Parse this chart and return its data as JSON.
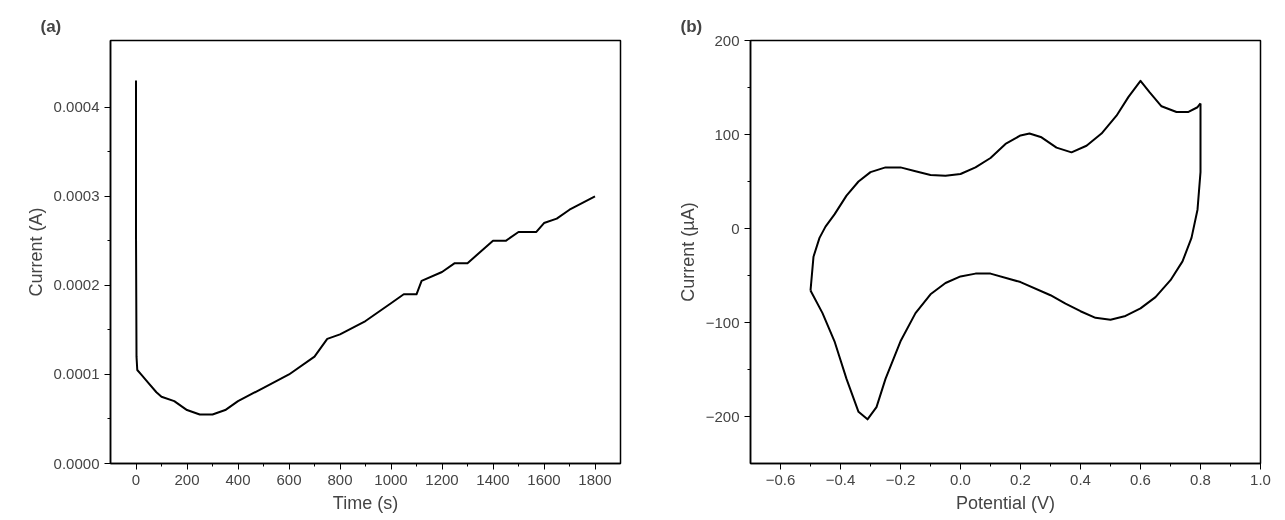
{
  "chart_data": [
    {
      "type": "line",
      "title": "(a)",
      "xlabel": "Time (s)",
      "ylabel": "Current (A)",
      "grid": false,
      "marker": "none",
      "line_style": "solid",
      "xlim": [
        -100,
        1900
      ],
      "ylim": [
        0,
        0.000475
      ],
      "xticks": [
        0,
        200,
        400,
        600,
        800,
        1000,
        1200,
        1400,
        1600,
        1800
      ],
      "yticks": [
        {
          "value": 0,
          "label": "0.0000"
        },
        {
          "value": 0.0001,
          "label": "0.0001"
        },
        {
          "value": 0.0002,
          "label": "0.0002"
        },
        {
          "value": 0.0003,
          "label": "0.0003"
        },
        {
          "value": 0.0004,
          "label": "0.0004"
        }
      ],
      "series": [
        {
          "color": "#000000",
          "x": [
            0,
            0,
            2,
            5,
            20,
            50,
            80,
            100,
            150,
            200,
            250,
            300,
            350,
            400,
            500,
            600,
            700,
            750,
            800,
            900,
            1000,
            1050,
            1100,
            1120,
            1200,
            1250,
            1300,
            1400,
            1450,
            1500,
            1570,
            1600,
            1650,
            1700,
            1800
          ],
          "values": [
            0.00043,
            0.00026,
            0.00012,
            0.000105,
            0.0001,
            9e-05,
            8e-05,
            7.5e-05,
            7e-05,
            6e-05,
            5.5e-05,
            5.5e-05,
            6e-05,
            7e-05,
            8.5e-05,
            0.0001,
            0.00012,
            0.00014,
            0.000145,
            0.00016,
            0.00018,
            0.00019,
            0.00019,
            0.000205,
            0.000215,
            0.000225,
            0.000225,
            0.00025,
            0.00025,
            0.00026,
            0.00026,
            0.00027,
            0.000275,
            0.000285,
            0.0003
          ]
        }
      ]
    },
    {
      "type": "line",
      "title": "(b)",
      "xlabel": "Potential (V)",
      "ylabel": "Current (µA)",
      "grid": false,
      "marker": "none",
      "line_style": "solid",
      "xlim": [
        -0.7,
        1.0
      ],
      "ylim": [
        -250,
        200
      ],
      "xticks": [
        {
          "value": -0.6,
          "label": "−0.6"
        },
        {
          "value": -0.4,
          "label": "−0.4"
        },
        {
          "value": -0.2,
          "label": "−0.2"
        },
        {
          "value": 0,
          "label": "0.0"
        },
        {
          "value": 0.2,
          "label": "0.2"
        },
        {
          "value": 0.4,
          "label": "0.4"
        },
        {
          "value": 0.6,
          "label": "0.6"
        },
        {
          "value": 0.8,
          "label": "0.8"
        },
        {
          "value": 1.0,
          "label": "1.0"
        }
      ],
      "yticks": [
        {
          "value": -200,
          "label": "−200"
        },
        {
          "value": -100,
          "label": "−100"
        },
        0,
        100,
        200
      ],
      "series": [
        {
          "color": "#000000",
          "x": [
            -0.5,
            -0.49,
            -0.47,
            -0.45,
            -0.42,
            -0.38,
            -0.34,
            -0.3,
            -0.25,
            -0.2,
            -0.15,
            -0.1,
            -0.05,
            0.0,
            0.05,
            0.1,
            0.15,
            0.2,
            0.23,
            0.27,
            0.32,
            0.37,
            0.42,
            0.47,
            0.52,
            0.56,
            0.6,
            0.63,
            0.67,
            0.72,
            0.76,
            0.79,
            0.8
          ],
          "values": [
            -66,
            -30,
            -10,
            2,
            15,
            35,
            50,
            60,
            65,
            65,
            61,
            57,
            56,
            58,
            65,
            75,
            90,
            99,
            101,
            97,
            86,
            81,
            88,
            101,
            120,
            140,
            157,
            145,
            130,
            124,
            124,
            129,
            133
          ]
        },
        {
          "color": "#000000",
          "x": [
            0.8,
            0.8,
            0.79,
            0.77,
            0.74,
            0.7,
            0.65,
            0.6,
            0.55,
            0.5,
            0.45,
            0.4,
            0.35,
            0.3,
            0.2,
            0.1,
            0.05,
            0.0,
            -0.05,
            -0.1,
            -0.15,
            -0.2,
            -0.25,
            -0.28,
            -0.31,
            -0.34,
            -0.38,
            -0.42,
            -0.46,
            -0.5
          ],
          "values": [
            133,
            60,
            20,
            -10,
            -35,
            -55,
            -73,
            -85,
            -93,
            -97,
            -95,
            -88,
            -80,
            -71,
            -57,
            -48,
            -48,
            -51,
            -58,
            -70,
            -90,
            -120,
            -160,
            -190,
            -203,
            -195,
            -160,
            -120,
            -90,
            -66
          ]
        }
      ]
    }
  ]
}
